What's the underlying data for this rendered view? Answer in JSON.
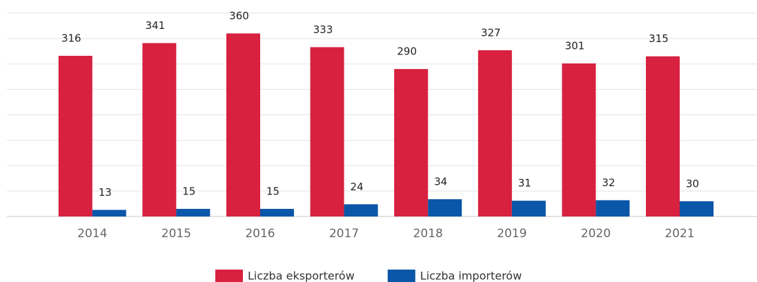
{
  "chart_data": {
    "type": "bar",
    "categories": [
      "2014",
      "2015",
      "2016",
      "2017",
      "2018",
      "2019",
      "2020",
      "2021"
    ],
    "series": [
      {
        "name": "Liczba eksporterów",
        "color": "#d7213f",
        "values": [
          316,
          341,
          360,
          333,
          290,
          327,
          301,
          315
        ]
      },
      {
        "name": "Liczba importerów",
        "color": "#0a56a8",
        "values": [
          13,
          15,
          15,
          24,
          34,
          31,
          32,
          30
        ]
      }
    ],
    "ylim": [
      0,
      400
    ],
    "yticks": [
      0,
      50,
      100,
      150,
      200,
      250,
      300,
      350,
      400
    ],
    "grid": true,
    "legend": "bottom"
  }
}
